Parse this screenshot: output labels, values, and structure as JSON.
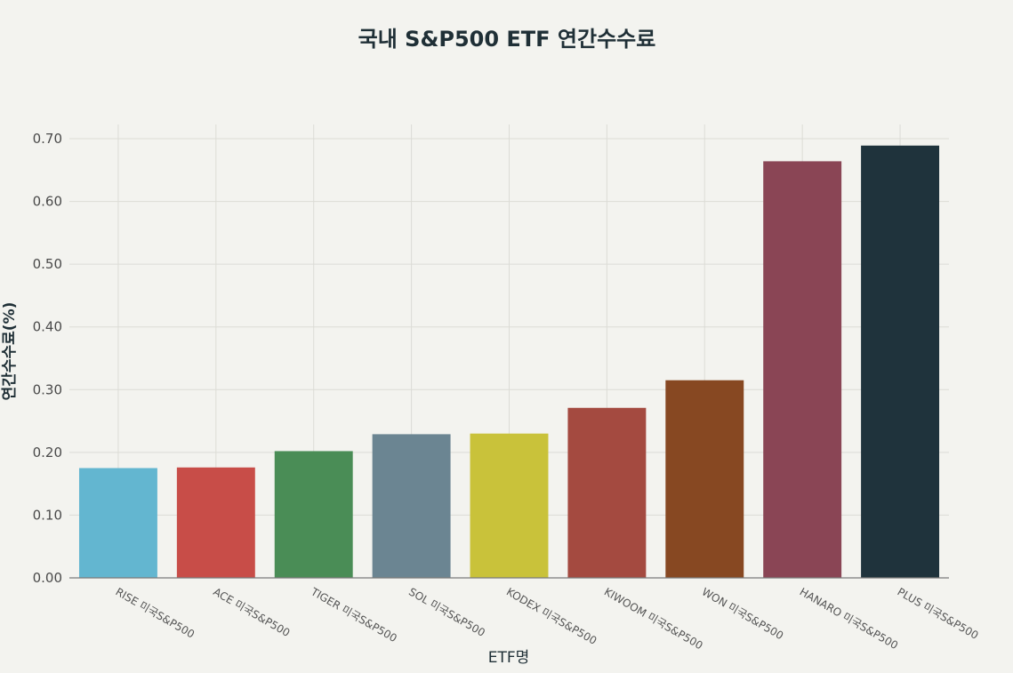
{
  "chart_data": {
    "type": "bar",
    "title": "국내 S&P500 ETF 연간수수료",
    "xlabel": "ETF명",
    "ylabel": "연간수수료(%)",
    "ylim": [
      0,
      0.7
    ],
    "yticks": [
      "0.00",
      "0.10",
      "0.20",
      "0.30",
      "0.40",
      "0.50",
      "0.60",
      "0.70"
    ],
    "grid": true,
    "categories": [
      "RISE 미국S&P500",
      "ACE 미국S&P500",
      "TIGER 미국S&P500",
      "SOL 미국S&P500",
      "KODEX 미국S&P500",
      "KIWOOM 미국S&P500",
      "WON 미국S&P500",
      "HANARO 미국S&P500",
      "PLUS 미국S&P500"
    ],
    "values": [
      0.175,
      0.176,
      0.202,
      0.229,
      0.23,
      0.271,
      0.315,
      0.664,
      0.689
    ],
    "colors": [
      "#63b6d0",
      "#c84d48",
      "#4a8d56",
      "#6b8592",
      "#c9c23a",
      "#a44a40",
      "#874822",
      "#8a4555",
      "#1f333c"
    ]
  }
}
